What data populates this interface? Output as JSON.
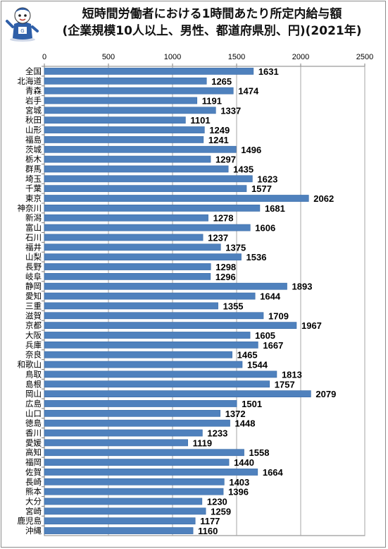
{
  "title": {
    "line1": "短時間労働者における1時間あたり所定内給与額",
    "line2": "(企業規模10人以上、男性、都道府県別、円)(2021年)"
  },
  "colors": {
    "bar": "#4f81bd",
    "bar_edge": "#3a6ca8",
    "grid": "#a6a6a6",
    "axis": "#808080"
  },
  "logo_icon": "cartoon-mascot-icon",
  "chart_data": {
    "type": "bar",
    "orientation": "horizontal",
    "title": "短時間労働者における1時間あたり所定内給与額 (企業規模10人以上、男性、都道府県別、円)(2021年)",
    "xlim": [
      0,
      2500
    ],
    "x_ticks": [
      0,
      500,
      1000,
      1500,
      2000,
      2500
    ],
    "grid": true,
    "categories": [
      "全国",
      "北海道",
      "青森",
      "岩手",
      "宮城",
      "秋田",
      "山形",
      "福島",
      "茨城",
      "栃木",
      "群馬",
      "埼玉",
      "千葉",
      "東京",
      "神奈川",
      "新潟",
      "富山",
      "石川",
      "福井",
      "山梨",
      "長野",
      "岐阜",
      "静岡",
      "愛知",
      "三重",
      "滋賀",
      "京都",
      "大阪",
      "兵庫",
      "奈良",
      "和歌山",
      "鳥取",
      "島根",
      "岡山",
      "広島",
      "山口",
      "徳島",
      "香川",
      "愛媛",
      "高知",
      "福岡",
      "佐賀",
      "長崎",
      "熊本",
      "大分",
      "宮崎",
      "鹿児島",
      "沖縄"
    ],
    "values": [
      1631,
      1265,
      1474,
      1191,
      1337,
      1101,
      1249,
      1241,
      1496,
      1297,
      1435,
      1623,
      1577,
      2062,
      1681,
      1278,
      1606,
      1237,
      1375,
      1536,
      1298,
      1296,
      1893,
      1644,
      1355,
      1709,
      1967,
      1605,
      1667,
      1465,
      1544,
      1813,
      1757,
      2079,
      1501,
      1372,
      1448,
      1233,
      1119,
      1558,
      1440,
      1664,
      1403,
      1396,
      1230,
      1259,
      1177,
      1160
    ]
  }
}
